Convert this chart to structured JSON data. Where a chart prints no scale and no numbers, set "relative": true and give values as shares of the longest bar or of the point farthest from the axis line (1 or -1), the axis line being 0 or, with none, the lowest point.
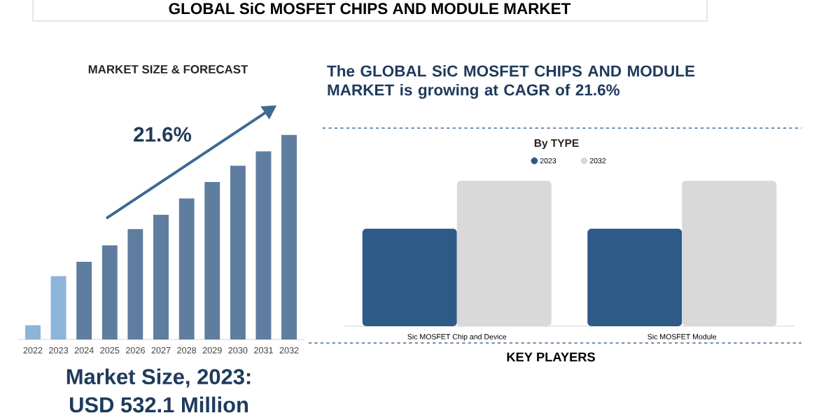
{
  "chart_data": [
    {
      "type": "bar",
      "title": "MARKET SIZE & FORECAST",
      "relative": true,
      "categories": [
        "2022",
        "2023",
        "2024",
        "2025",
        "2026",
        "2027",
        "2028",
        "2029",
        "2030",
        "2031",
        "2032"
      ],
      "values": [
        0.07,
        0.31,
        0.38,
        0.46,
        0.54,
        0.61,
        0.69,
        0.77,
        0.85,
        0.92,
        1
      ],
      "colors": [
        "#8db4d9",
        "#8db4d9",
        "#5f7e9f",
        "#5f7e9f",
        "#5f7e9f",
        "#5f7e9f",
        "#5f7e9f",
        "#5f7e9f",
        "#5f7e9f",
        "#5f7e9f",
        "#5f7e9f"
      ],
      "annotations": [
        "GLOBAL SiC MOSFET CHIPS AND MODULE MARKET",
        "21.6%",
        "Market Size, 2023:",
        "USD 532.1 Million"
      ]
    },
    {
      "type": "bar",
      "title": "By TYPE",
      "subtitle": "The GLOBAL SiC MOSFET CHIPS AND MODULE MARKET is growing at CAGR of 21.6%",
      "relative": true,
      "legend": "top",
      "categories": [
        "Sic MOSFET Chip and Device",
        "Sic MOSFET Module"
      ],
      "series": [
        {
          "name": "2023",
          "color": "#2e5a87",
          "values": [
            0.67,
            0.67
          ]
        },
        {
          "name": "2032",
          "color": "#d9d9d9",
          "values": [
            1,
            1
          ]
        }
      ],
      "annotations": [
        "KEY PLAYERS"
      ]
    }
  ]
}
